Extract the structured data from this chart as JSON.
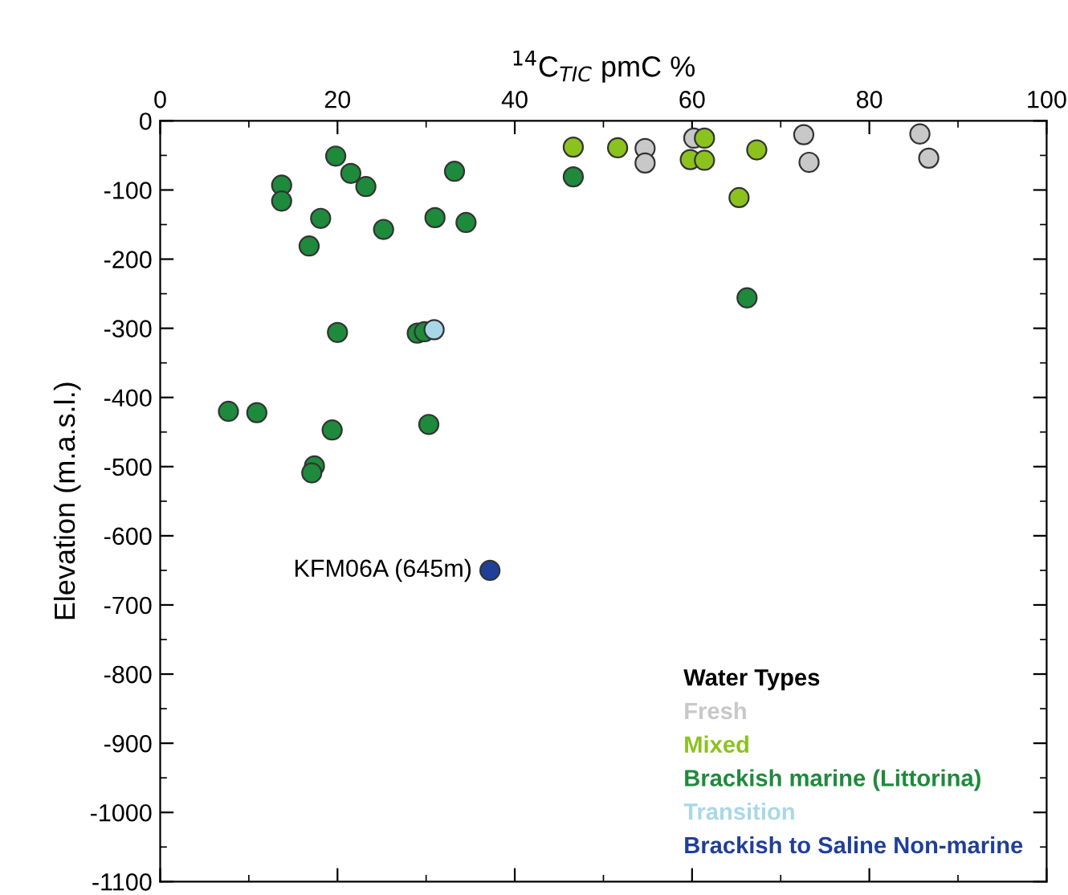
{
  "chart_data": {
    "type": "scatter",
    "xlabel": "$^{14}$C$_{TIC}$ pmC %",
    "ylabel": "Elevation (m.a.s.l.)",
    "legend_title": "Water Types",
    "legend": "bottom right",
    "marker": "circle",
    "grid": false,
    "xlim": [
      0,
      100
    ],
    "xticks": [
      0,
      20,
      40,
      60,
      80,
      100
    ],
    "ylim": [
      -1100,
      0
    ],
    "yticks": [
      0,
      -100,
      -200,
      -300,
      -400,
      -500,
      -600,
      -700,
      -800,
      -900,
      -1000,
      -1100
    ],
    "annotations": [
      {
        "text": "KFM06A (645m)",
        "x": 37.2,
        "y": -650
      }
    ],
    "series": [
      {
        "name": "Fresh",
        "color": "#c8c8c8",
        "x": [
          54.7,
          54.7,
          60.2,
          72.6,
          73.2,
          85.7,
          86.7
        ],
        "values": [
          -40,
          -61,
          -25,
          -20,
          -60,
          -19,
          -54
        ]
      },
      {
        "name": "Mixed",
        "color": "#8cc21e",
        "x": [
          46.6,
          51.6,
          61.4,
          59.8,
          61.4,
          67.3,
          65.3
        ],
        "values": [
          -38,
          -39,
          -25,
          -56,
          -57,
          -42,
          -111
        ]
      },
      {
        "name": "Brackish marine (Littorina)",
        "color": "#1e8a3c",
        "x": [
          13.7,
          13.7,
          19.8,
          21.5,
          23.2,
          33.2,
          18.1,
          16.8,
          25.2,
          31.0,
          34.5,
          46.6,
          20.0,
          29.0,
          29.8,
          7.7,
          10.9,
          19.4,
          30.3,
          17.4,
          17.1,
          66.2
        ],
        "values": [
          -93,
          -116,
          -51,
          -76,
          -95,
          -73,
          -141,
          -181,
          -157,
          -140,
          -147,
          -81,
          -306,
          -307,
          -305,
          -420,
          -422,
          -447,
          -439,
          -499,
          -509,
          -256
        ]
      },
      {
        "name": "Transition",
        "color": "#a8d8e8",
        "x": [
          30.9
        ],
        "values": [
          -302
        ]
      },
      {
        "name": "Brackish to Saline Non-marine",
        "color": "#1f3f99",
        "x": [
          37.2
        ],
        "values": [
          -650
        ]
      }
    ]
  }
}
